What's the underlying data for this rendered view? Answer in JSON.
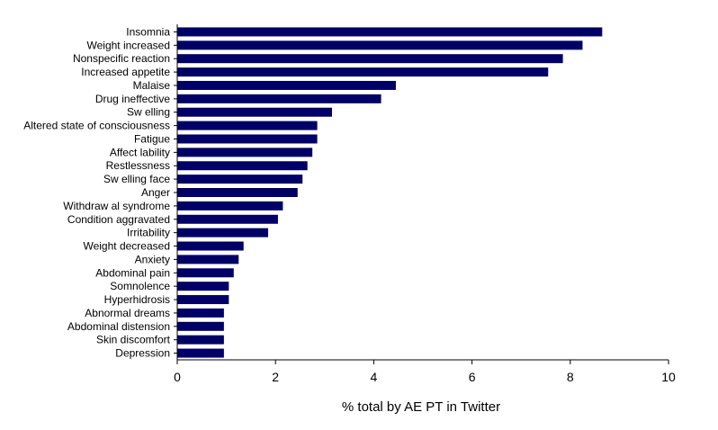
{
  "chart_data": {
    "type": "bar",
    "orientation": "horizontal",
    "title": "",
    "xlabel": "% total by AE PT in Twitter",
    "ylabel": "",
    "xlim": [
      0,
      10
    ],
    "xticks": [
      0,
      2,
      4,
      6,
      8,
      10
    ],
    "grid": false,
    "bar_color": "#000066",
    "categories": [
      "Insomnia",
      "Weight increased",
      "Nonspecific reaction",
      "Increased appetite",
      "Malaise",
      "Drug ineffective",
      "Sw elling",
      "Altered state of consciousness",
      "Fatigue",
      "Affect lability",
      "Restlessness",
      "Sw elling face",
      "Anger",
      "Withdraw al syndrome",
      "Condition aggravated",
      "Irritability",
      "Weight decreased",
      "Anxiety",
      "Abdominal pain",
      "Somnolence",
      "Hyperhidrosis",
      "Abnormal dreams",
      "Abdominal distension",
      "Skin discomfort",
      "Depression"
    ],
    "values": [
      8.65,
      8.25,
      7.85,
      7.55,
      4.45,
      4.15,
      3.15,
      2.85,
      2.85,
      2.75,
      2.65,
      2.55,
      2.45,
      2.15,
      2.05,
      1.85,
      1.35,
      1.25,
      1.15,
      1.05,
      1.05,
      0.95,
      0.95,
      0.95,
      0.95
    ]
  }
}
